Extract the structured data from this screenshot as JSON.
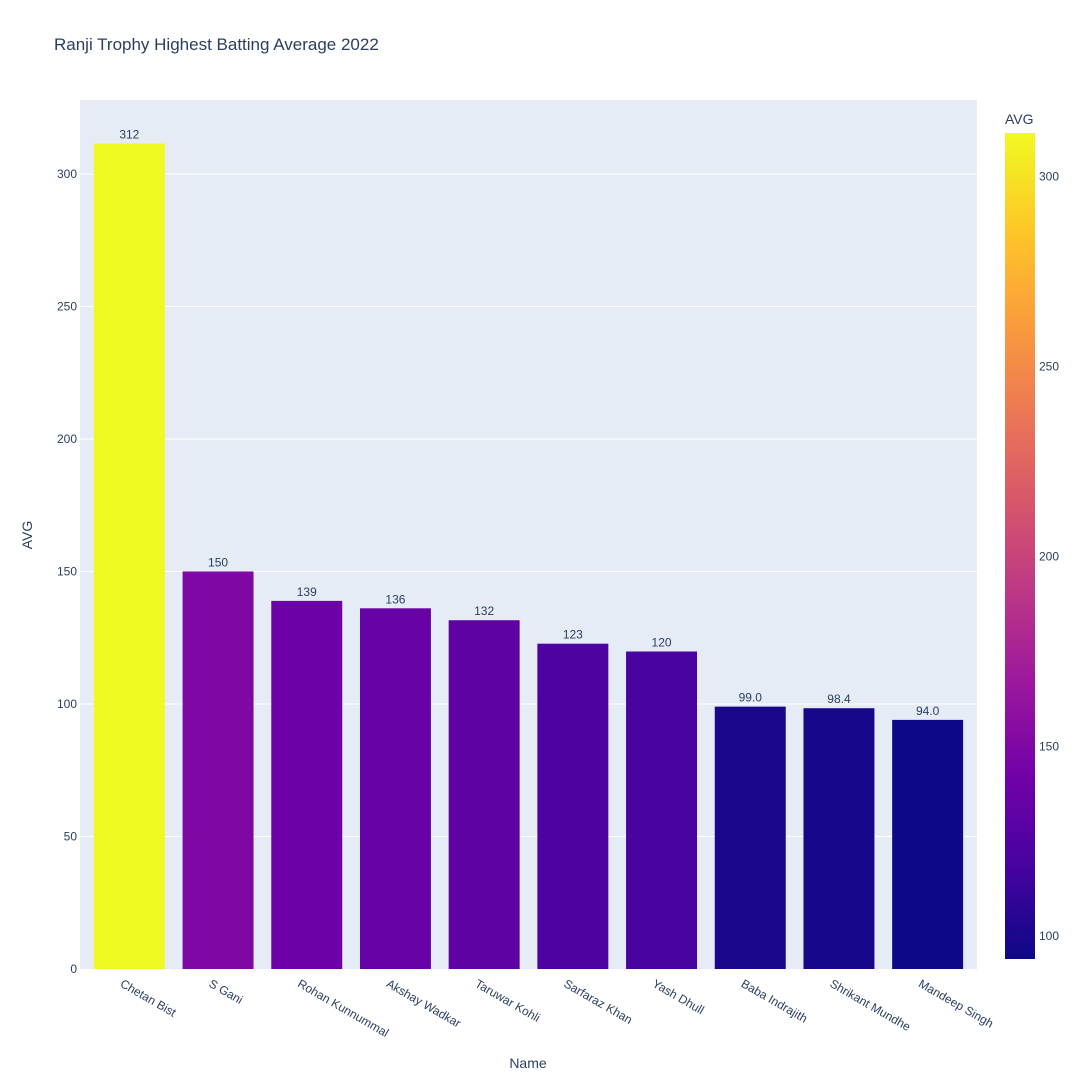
{
  "chart_data": {
    "type": "bar",
    "title": "Ranji Trophy Highest Batting Average 2022",
    "xlabel": "Name",
    "ylabel": "AVG",
    "categories": [
      "Chetan Bist",
      "S Gani",
      "Rohan Kunnummal",
      "Akshay Wadkar",
      "Taruwar Kohli",
      "Sarfaraz Khan",
      "Yash Dhull",
      "Baba Indrajith",
      "Shrikant Mundhe",
      "Mandeep Singh"
    ],
    "values": [
      311.5,
      150.0,
      138.9,
      136.1,
      131.6,
      122.75,
      119.8,
      99.0,
      98.4,
      94.0
    ],
    "data_labels": [
      "312",
      "150",
      "139",
      "136",
      "132",
      "123",
      "120",
      "99.0",
      "98.4",
      "94.0"
    ],
    "ylim": [
      0,
      327.9
    ],
    "yticks": [
      0,
      50,
      100,
      150,
      200,
      250,
      300
    ],
    "grid": true,
    "colorbar": {
      "title": "AVG",
      "range": [
        94.0,
        311.5
      ],
      "ticks": [
        100,
        150,
        200,
        250,
        300
      ],
      "colorscale": [
        "#0d0887",
        "#46039f",
        "#7201a8",
        "#9c179e",
        "#bd3786",
        "#d8576b",
        "#ed7953",
        "#fb9f3a",
        "#fdca26",
        "#f0f921"
      ]
    },
    "colors": {
      "plot_bg": "#e5ecf6",
      "grid": "#ffffff",
      "text": "#2a3f5f"
    }
  }
}
